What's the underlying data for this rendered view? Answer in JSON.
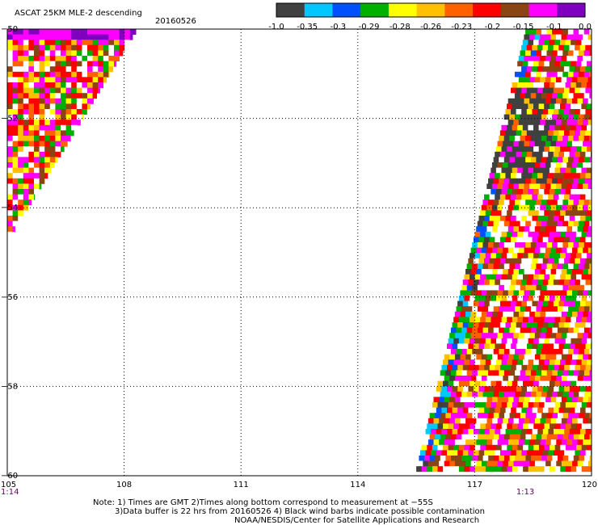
{
  "chart_data": {
    "type": "heatmap",
    "title": "ASCAT 25KM MLE-2 descending",
    "date": "20160526",
    "x_ticks": [
      "105",
      "108",
      "111",
      "114",
      "117",
      "120"
    ],
    "y_ticks": [
      "-50",
      "-52",
      "-54",
      "-56",
      "-58",
      "-60"
    ],
    "xlim": [
      105,
      120
    ],
    "ylim": [
      -60,
      -50
    ],
    "grid": true,
    "time_labels": [
      {
        "text": "1:14",
        "x": 105
      },
      {
        "text": "1:13",
        "x": 118.3
      }
    ],
    "colorbar": {
      "tick_labels": [
        "-1.0",
        "-0.35",
        "-0.3",
        "-0.29",
        "-0.28",
        "-0.26",
        "-0.23",
        "-0.2",
        "-0.15",
        "-0.1",
        "0.0"
      ],
      "colors": [
        "#404040",
        "#00c8ff",
        "#0050ff",
        "#00b000",
        "#ffff00",
        "#ffc000",
        "#ff6000",
        "#ff0000",
        "#8b4513",
        "#ff00ff",
        "#8000c0"
      ]
    },
    "swaths": [
      {
        "name": "",
        "lon_range_at_top": [
          105,
          108.3
        ],
        "lon_range_at_bottom": [
          105,
          105
        ]
      },
      {
        "name": "",
        "lon_range_at_top": [
          118.3,
          120
        ],
        "lon_range_at_bottom": [
          115.5,
          120
        ]
      }
    ]
  },
  "notes": {
    "line1": "Note: 1) Times are GMT 2)Times along bottom correspond to measurement at −55S",
    "line2": "3)Data buffer is 22 hrs from 20160526 4) Black wind barbs indicate possible contamination",
    "line3": "NOAA/NESDIS/Center for Satellite Applications and Research"
  }
}
